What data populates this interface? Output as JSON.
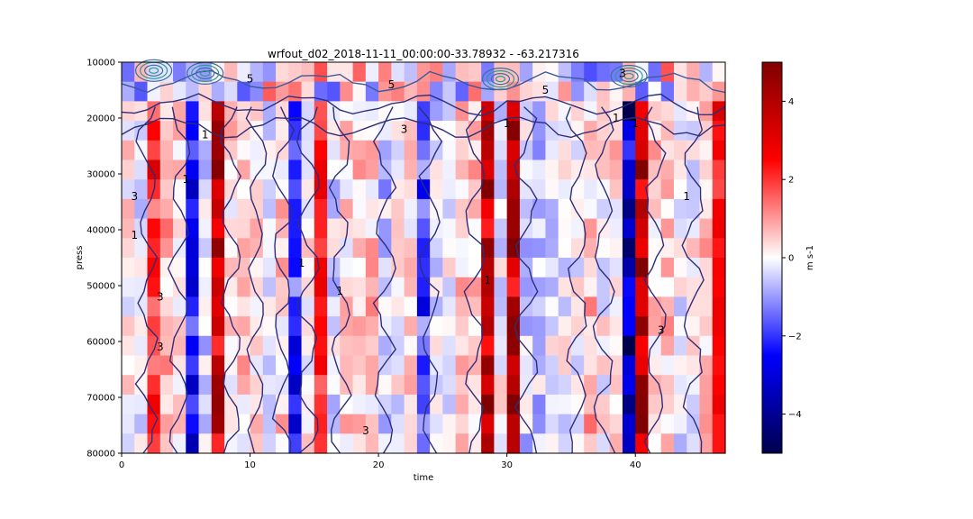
{
  "chart_data": {
    "type": "heatmap",
    "title": "wrfout_d02_2018-11-11_00:00:00-33.78932 - -63.217316",
    "xlabel": "time",
    "ylabel": "press",
    "colorbar_label": "m s-1",
    "xlim": [
      0,
      47
    ],
    "ylim": [
      80000,
      10000
    ],
    "x_ticks": [
      0,
      10,
      20,
      30,
      40
    ],
    "y_ticks": [
      10000,
      20000,
      30000,
      40000,
      50000,
      60000,
      70000,
      80000
    ],
    "colorbar_range": [
      -5,
      5
    ],
    "colorbar_ticks": [
      -4,
      -2,
      0,
      2,
      4
    ],
    "colormap": "seismic",
    "colormap_stops": [
      "#00004c",
      "#0000ff",
      "#ffffff",
      "#ff0000",
      "#800000"
    ],
    "n_time": 47,
    "n_levels": 20,
    "strong_columns": [
      {
        "time": 2.5,
        "value": 2.5
      },
      {
        "time": 5.5,
        "value": -2.8
      },
      {
        "time": 7.5,
        "value": 4.5
      },
      {
        "time": 13.5,
        "value": -2.5
      },
      {
        "time": 15.5,
        "value": 2.6
      },
      {
        "time": 23.5,
        "value": -2.2
      },
      {
        "time": 28.5,
        "value": 4.6
      },
      {
        "time": 30.5,
        "value": 4.8
      },
      {
        "time": 39.5,
        "value": -4.7
      },
      {
        "time": 40.5,
        "value": 4.9
      },
      {
        "time": 46.5,
        "value": 3.2
      }
    ],
    "contour_labels": [
      {
        "x": 1.0,
        "y": 34000,
        "text": "3"
      },
      {
        "x": 3.0,
        "y": 52000,
        "text": "3"
      },
      {
        "x": 3.0,
        "y": 61000,
        "text": "3"
      },
      {
        "x": 1.0,
        "y": 41000,
        "text": "1"
      },
      {
        "x": 10.0,
        "y": 13000,
        "text": "5"
      },
      {
        "x": 6.5,
        "y": 23000,
        "text": "1"
      },
      {
        "x": 5.0,
        "y": 31000,
        "text": "1"
      },
      {
        "x": 14.0,
        "y": 46000,
        "text": "1"
      },
      {
        "x": 21.0,
        "y": 14000,
        "text": "5"
      },
      {
        "x": 22.0,
        "y": 22000,
        "text": "3"
      },
      {
        "x": 19.0,
        "y": 76000,
        "text": "3"
      },
      {
        "x": 33.0,
        "y": 15000,
        "text": "5"
      },
      {
        "x": 30.0,
        "y": 21000,
        "text": "1"
      },
      {
        "x": 28.5,
        "y": 49000,
        "text": "1"
      },
      {
        "x": 40.0,
        "y": 21000,
        "text": "1"
      },
      {
        "x": 42.0,
        "y": 58000,
        "text": "3"
      },
      {
        "x": 39.0,
        "y": 12000,
        "text": "3"
      },
      {
        "x": 44.0,
        "y": 34000,
        "text": "1"
      },
      {
        "x": 17.0,
        "y": 51000,
        "text": "1"
      },
      {
        "x": 38.5,
        "y": 20000,
        "text": "1"
      }
    ]
  }
}
